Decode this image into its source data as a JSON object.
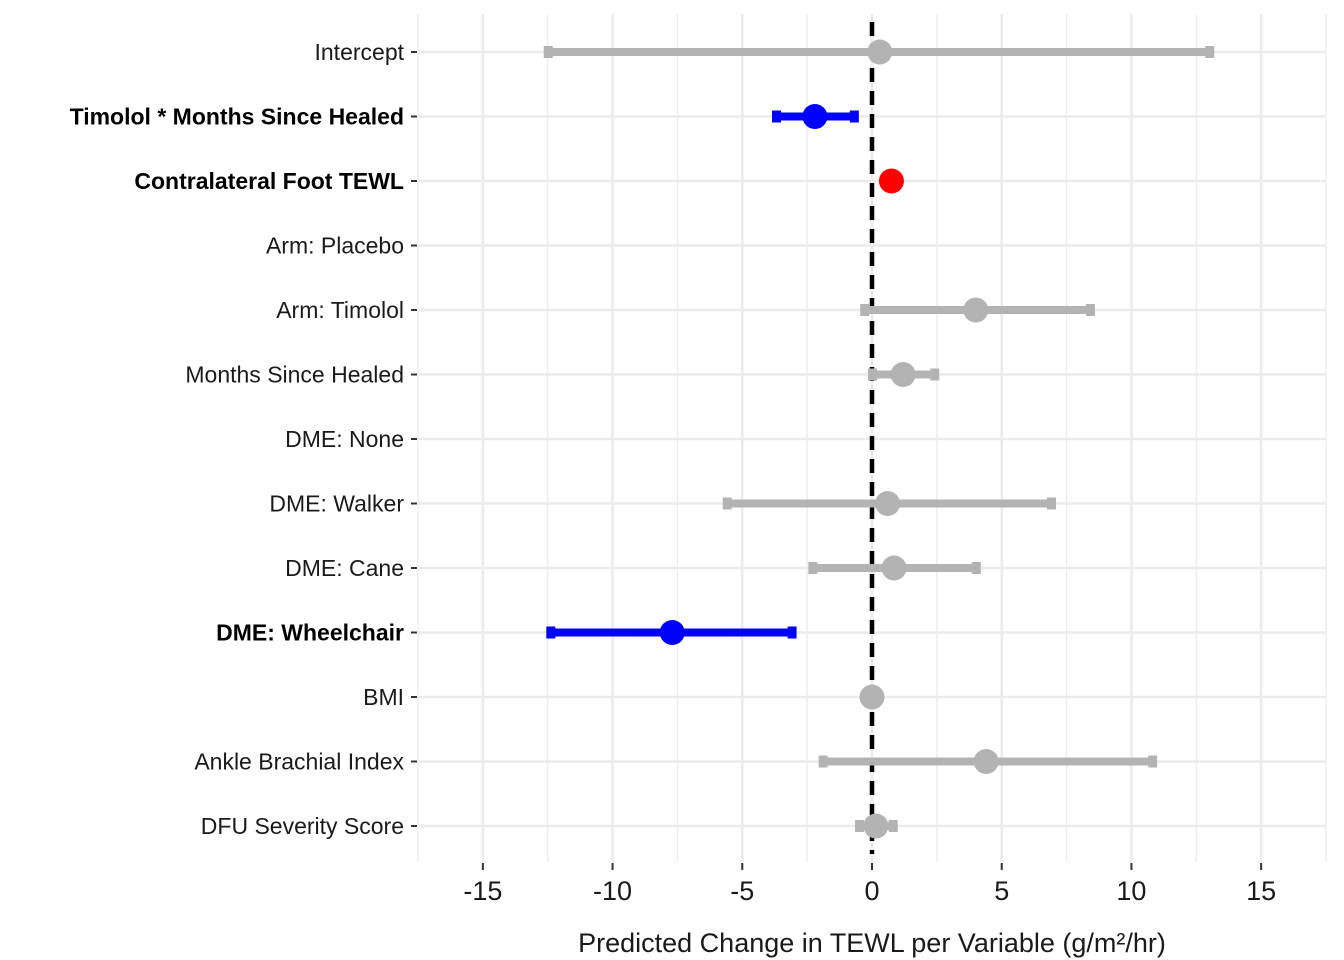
{
  "chart_data": {
    "type": "forest",
    "xlabel": "Predicted Change in TEWL per Variable (g/m²/hr)",
    "xlim": [
      -17.5,
      17.5
    ],
    "x_ticks": [
      -15,
      -10,
      -5,
      0,
      5,
      10,
      15
    ],
    "x_tick_labels": [
      "-15",
      "-10",
      "-5",
      "0",
      "5",
      "10",
      "15"
    ],
    "reference_line": 0,
    "grid": true,
    "colors": {
      "not_significant": "#b3b3b3",
      "negative_significant": "#0000ff",
      "positive_significant": "#ff0000",
      "reference_line": "#000000",
      "grid": "#ebebeb"
    },
    "rows": [
      {
        "label": "Intercept",
        "estimate": 0.3,
        "lower": -12.5,
        "upper": 13.0,
        "group": "not_significant",
        "bold": false
      },
      {
        "label": "Timolol * Months Since Healed",
        "estimate": -2.2,
        "lower": -3.7,
        "upper": -0.7,
        "group": "negative_significant",
        "bold": true
      },
      {
        "label": "Contralateral Foot TEWL",
        "estimate": 0.75,
        "lower": 0.65,
        "upper": 0.85,
        "group": "positive_significant",
        "bold": true
      },
      {
        "label": "Arm: Placebo",
        "estimate": null,
        "lower": null,
        "upper": null,
        "group": "not_significant",
        "bold": false
      },
      {
        "label": "Arm: Timolol",
        "estimate": 4.0,
        "lower": -0.3,
        "upper": 8.4,
        "group": "not_significant",
        "bold": false
      },
      {
        "label": "Months Since Healed",
        "estimate": 1.2,
        "lower": 0.0,
        "upper": 2.4,
        "group": "not_significant",
        "bold": false
      },
      {
        "label": "DME: None",
        "estimate": null,
        "lower": null,
        "upper": null,
        "group": "not_significant",
        "bold": false
      },
      {
        "label": "DME: Walker",
        "estimate": 0.6,
        "lower": -5.6,
        "upper": 6.9,
        "group": "not_significant",
        "bold": false
      },
      {
        "label": "DME: Cane",
        "estimate": 0.85,
        "lower": -2.3,
        "upper": 4.0,
        "group": "not_significant",
        "bold": false
      },
      {
        "label": "DME: Wheelchair",
        "estimate": -7.7,
        "lower": -12.4,
        "upper": -3.1,
        "group": "negative_significant",
        "bold": true
      },
      {
        "label": "BMI",
        "estimate": 0.0,
        "lower": -0.1,
        "upper": 0.1,
        "group": "not_significant",
        "bold": false
      },
      {
        "label": "Ankle Brachial Index",
        "estimate": 4.4,
        "lower": -1.9,
        "upper": 10.8,
        "group": "not_significant",
        "bold": false
      },
      {
        "label": "DFU Severity Score",
        "estimate": 0.15,
        "lower": -0.5,
        "upper": 0.8,
        "group": "not_significant",
        "bold": false
      }
    ]
  }
}
